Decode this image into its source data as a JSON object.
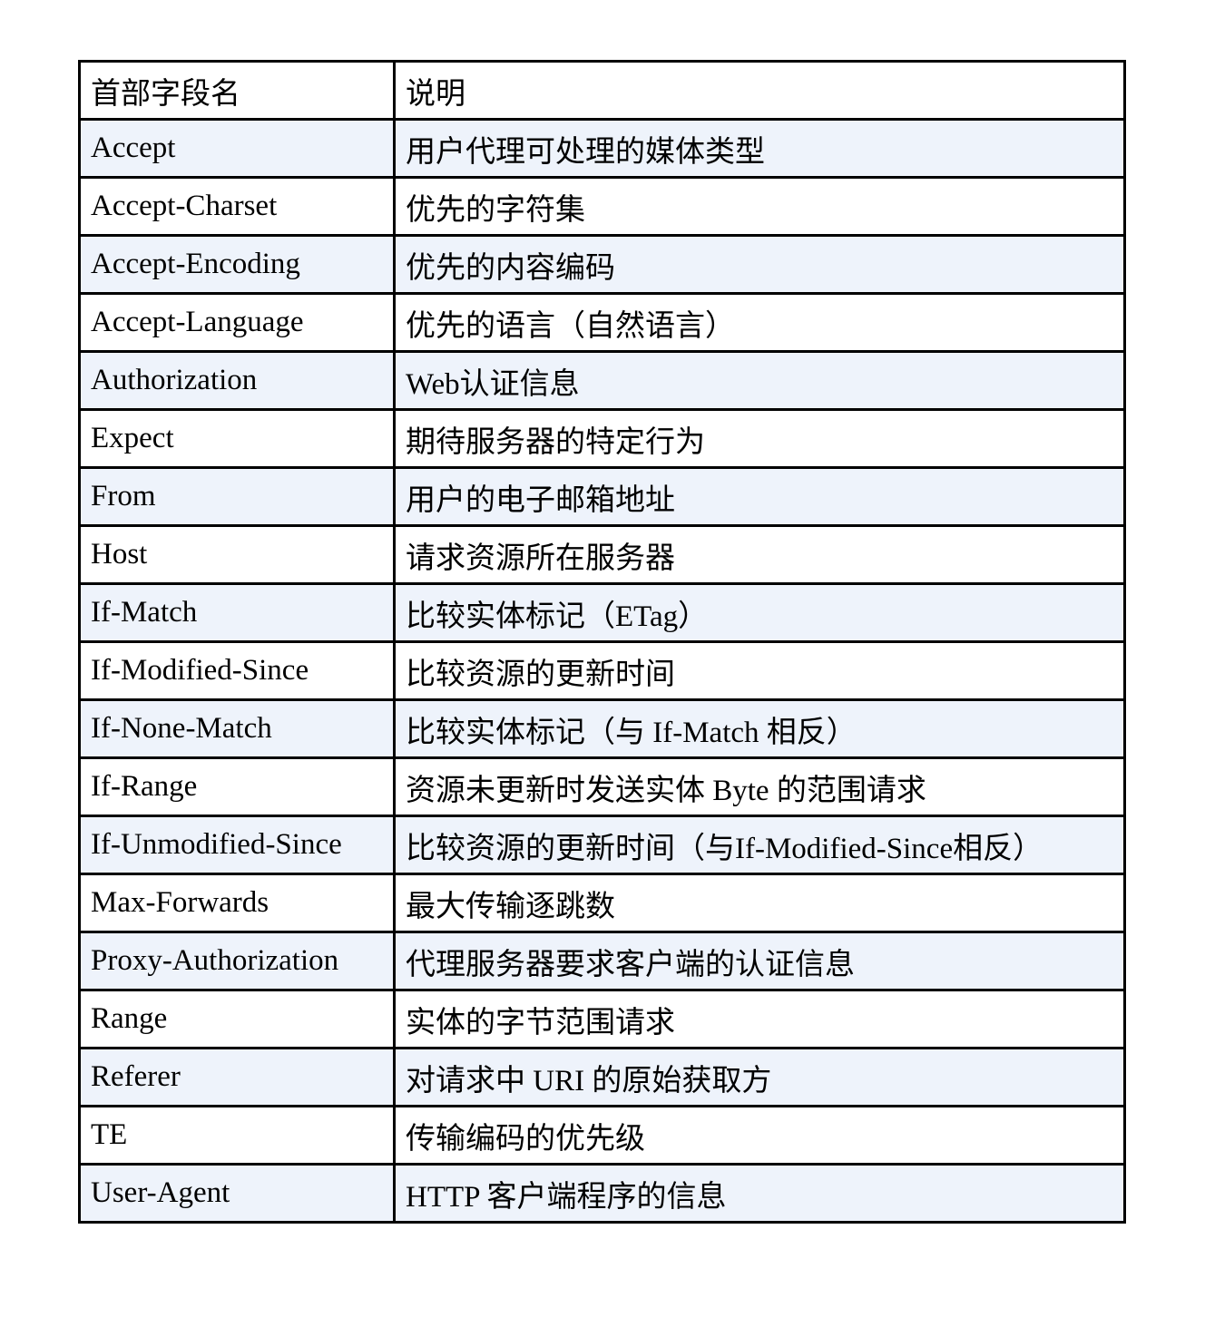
{
  "header": {
    "field": "首部字段名",
    "desc": "说明"
  },
  "rows": [
    {
      "field": "Accept",
      "desc": "用户代理可处理的媒体类型"
    },
    {
      "field": "Accept-Charset",
      "desc": "优先的字符集"
    },
    {
      "field": "Accept-Encoding",
      "desc": "优先的内容编码"
    },
    {
      "field": "Accept-Language",
      "desc": "优先的语言（自然语言）"
    },
    {
      "field": "Authorization",
      "desc": "Web认证信息"
    },
    {
      "field": "Expect",
      "desc": "期待服务器的特定行为"
    },
    {
      "field": "From",
      "desc": "用户的电子邮箱地址"
    },
    {
      "field": "Host",
      "desc": "请求资源所在服务器"
    },
    {
      "field": "If-Match",
      "desc": "比较实体标记（ETag）"
    },
    {
      "field": "If-Modified-Since",
      "desc": "比较资源的更新时间"
    },
    {
      "field": "If-None-Match",
      "desc": "比较实体标记（与 If-Match 相反）"
    },
    {
      "field": "If-Range",
      "desc": "资源未更新时发送实体 Byte 的范围请求"
    },
    {
      "field": "If-Unmodified-Since",
      "desc": "比较资源的更新时间（与If-Modified-Since相反）"
    },
    {
      "field": "Max-Forwards",
      "desc": "最大传输逐跳数"
    },
    {
      "field": "Proxy-Authorization",
      "desc": "代理服务器要求客户端的认证信息"
    },
    {
      "field": "Range",
      "desc": "实体的字节范围请求"
    },
    {
      "field": "Referer",
      "desc": "对请求中 URI 的原始获取方"
    },
    {
      "field": "TE",
      "desc": "传输编码的优先级"
    },
    {
      "field": "User-Agent",
      "desc": "HTTP 客户端程序的信息"
    }
  ],
  "colors": {
    "stripe": "#eef3fb",
    "border": "#000000"
  }
}
